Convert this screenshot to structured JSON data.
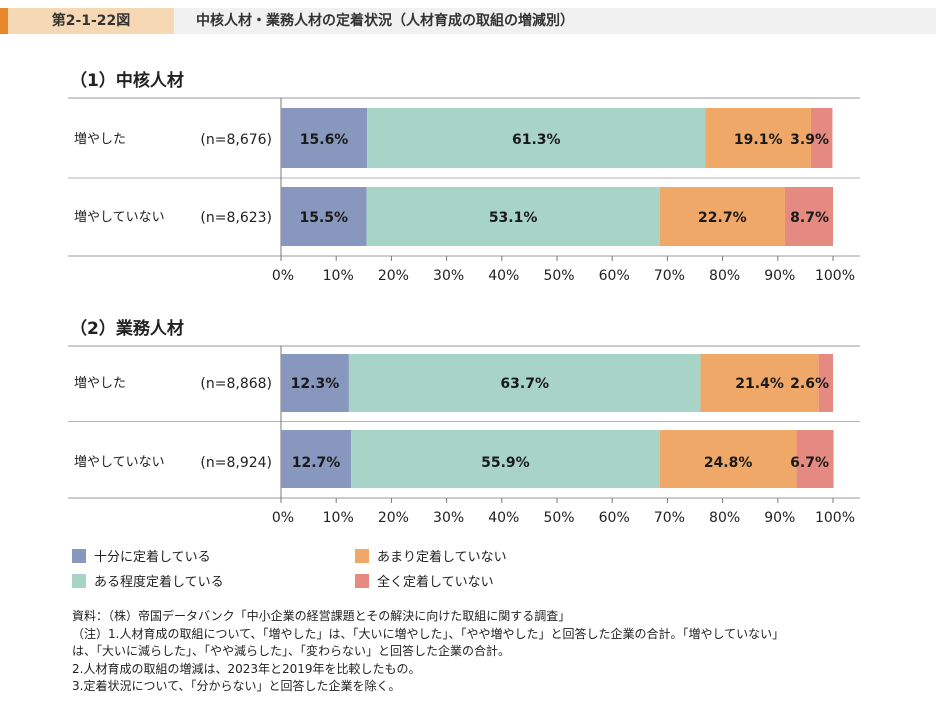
{
  "header": {
    "figure_number": "第2-1-22図",
    "title": "中核人材・業務人材の定着状況（人材育成の取組の増減別）"
  },
  "colors": {
    "fully_retained": "#8797bd",
    "somewhat_retained": "#a8d4c8",
    "not_much_retained": "#f0a868",
    "not_at_all_retained": "#e58a80",
    "header_accent": "#e8872a",
    "header_number_bg": "#f7d8b5"
  },
  "chart_data": [
    {
      "type": "bar",
      "orientation": "horizontal",
      "stacked": true,
      "title": "（1）中核人材",
      "categories": [
        "増やした",
        "増やしていない"
      ],
      "sample_sizes": [
        "(n=8,676)",
        "(n=8,623)"
      ],
      "series": [
        {
          "name": "十分に定着している",
          "values": [
            15.6,
            15.5
          ],
          "labels": [
            "15.6%",
            "15.5%"
          ]
        },
        {
          "name": "ある程度定着している",
          "values": [
            61.3,
            53.1
          ],
          "labels": [
            "61.3%",
            "53.1%"
          ]
        },
        {
          "name": "あまり定着していない",
          "values": [
            19.1,
            22.7
          ],
          "labels": [
            "19.1%",
            "22.7%"
          ]
        },
        {
          "name": "全く定着していない",
          "values": [
            3.9,
            8.7
          ],
          "labels": [
            "3.9%",
            "8.7%"
          ]
        }
      ],
      "xlim": [
        0,
        100
      ],
      "xticks": [
        "0%",
        "10%",
        "20%",
        "30%",
        "40%",
        "50%",
        "60%",
        "70%",
        "80%",
        "90%",
        "100%"
      ]
    },
    {
      "type": "bar",
      "orientation": "horizontal",
      "stacked": true,
      "title": "（2）業務人材",
      "categories": [
        "増やした",
        "増やしていない"
      ],
      "sample_sizes": [
        "(n=8,868)",
        "(n=8,924)"
      ],
      "series": [
        {
          "name": "十分に定着している",
          "values": [
            12.3,
            12.7
          ],
          "labels": [
            "12.3%",
            "12.7%"
          ]
        },
        {
          "name": "ある程度定着している",
          "values": [
            63.7,
            55.9
          ],
          "labels": [
            "63.7%",
            "55.9%"
          ]
        },
        {
          "name": "あまり定着していない",
          "values": [
            21.4,
            24.8
          ],
          "labels": [
            "21.4%",
            "24.8%"
          ]
        },
        {
          "name": "全く定着していない",
          "values": [
            2.6,
            6.7
          ],
          "labels": [
            "2.6%",
            "6.7%"
          ]
        }
      ],
      "xlim": [
        0,
        100
      ],
      "xticks": [
        "0%",
        "10%",
        "20%",
        "30%",
        "40%",
        "50%",
        "60%",
        "70%",
        "80%",
        "90%",
        "100%"
      ]
    }
  ],
  "legend": {
    "fully_retained": "十分に定着している",
    "somewhat_retained": "ある程度定着している",
    "not_much_retained": "あまり定着していない",
    "not_at_all_retained": "全く定着していない"
  },
  "notes": {
    "source": "資料：（株）帝国データバンク「中小企業の経営課題とその解決に向けた取組に関する調査」",
    "note1a": "（注）1.人材育成の取組について、「増やした」は、「大いに増やした」、「やや増やした」と回答した企業の合計。「増やしていない」",
    "note1b": "は、「大いに減らした」、「やや減らした」、「変わらない」と回答した企業の合計。",
    "note2": "2.人材育成の取組の増減は、2023年と2019年を比較したもの。",
    "note3": "3.定着状況について、「分からない」と回答した企業を除く。"
  }
}
